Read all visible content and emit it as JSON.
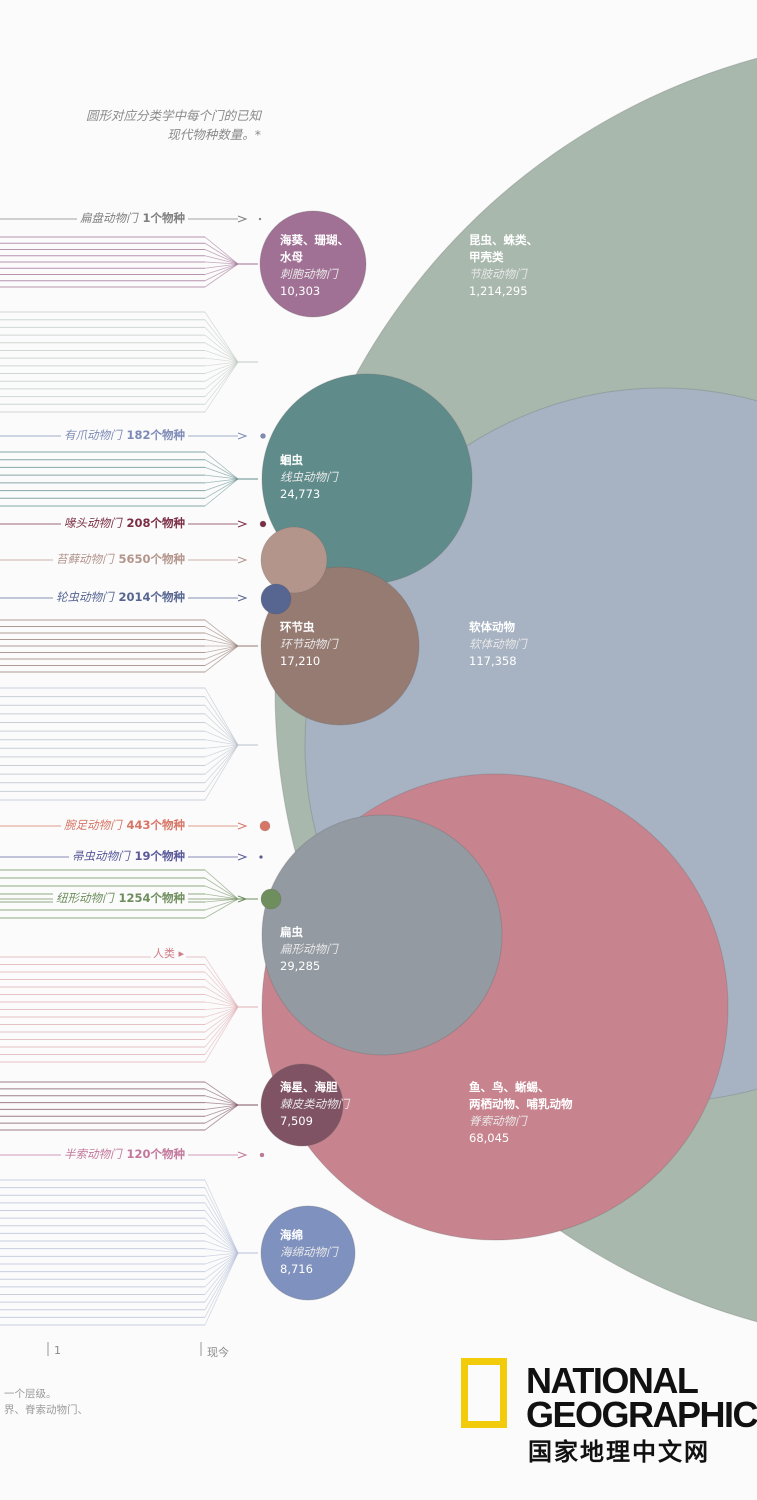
{
  "header_note": [
    "圆形对应分类学中每个门的已知",
    "现代物种数量。*"
  ],
  "colors": {
    "arthropoda": "#a8b8ad",
    "mollusca": "#a7b3c3",
    "chordata": "#c7848f",
    "cnidaria": "#a17195",
    "nematoda": "#5f8c8b",
    "bryozoa": "#b3958c",
    "annelida": "#967b73",
    "rotifera": "#566691",
    "platyhelminthes": "#939aa2",
    "echinodermata": "#7f5363",
    "porifera": "#7f91bf",
    "onychophora": "#7d8bb6",
    "acanthocephala": "#7b2e46",
    "brachiopoda": "#d77666",
    "nemertea_small": "#58589a",
    "nemertea": "#6f8e5e",
    "hemichordata": "#c2789c",
    "placozoa": "#7e7e7e"
  },
  "chart_data": {
    "type": "bubble",
    "unit": "个物种",
    "bubbles": [
      {
        "key": "arthropoda",
        "common": "昆虫、蛛类、甲壳类",
        "common_lines": [
          "昆虫、蛛类、",
          "甲壳类"
        ],
        "sci": "节肢动物门",
        "count": "1,214,295",
        "value": 1214295
      },
      {
        "key": "mollusca",
        "common": "软体动物",
        "common_lines": [
          "软体动物"
        ],
        "sci": "软体动物门",
        "count": "117,358",
        "value": 117358
      },
      {
        "key": "chordata",
        "common": "鱼、鸟、蜥蜴、两栖动物、哺乳动物",
        "common_lines": [
          "鱼、鸟、蜥蜴、",
          "两栖动物、哺乳动物"
        ],
        "sci": "脊索动物门",
        "count": "68,045",
        "value": 68045
      },
      {
        "key": "platyhelminthes",
        "common": "扁虫",
        "common_lines": [
          "扁虫"
        ],
        "sci": "扁形动物门",
        "count": "29,285",
        "value": 29285
      },
      {
        "key": "nematoda",
        "common": "蛔虫",
        "common_lines": [
          "蛔虫"
        ],
        "sci": "线虫动物门",
        "count": "24,773",
        "value": 24773
      },
      {
        "key": "annelida",
        "common": "环节虫",
        "common_lines": [
          "环节虫"
        ],
        "sci": "环节动物门",
        "count": "17,210",
        "value": 17210
      },
      {
        "key": "cnidaria",
        "common": "海葵、珊瑚、水母",
        "common_lines": [
          "海葵、珊瑚、",
          "水母"
        ],
        "sci": "刺胞动物门",
        "count": "10,303",
        "value": 10303
      },
      {
        "key": "porifera",
        "common": "海绵",
        "common_lines": [
          "海绵"
        ],
        "sci": "海绵动物门",
        "count": "8,716",
        "value": 8716
      },
      {
        "key": "echinodermata",
        "common": "海星、海胆",
        "common_lines": [
          "海星、海胆"
        ],
        "sci": "棘皮类动物门",
        "count": "7,509",
        "value": 7509
      }
    ],
    "small_phyla": [
      {
        "key": "placozoa",
        "name": "扁盘动物门",
        "count": "1个物种",
        "value": 1
      },
      {
        "key": "onychophora",
        "name": "有爪动物门",
        "count": "182个物种",
        "value": 182
      },
      {
        "key": "acanthocephala",
        "name": "喙头动物门",
        "count": "208个物种",
        "value": 208
      },
      {
        "key": "bryozoa",
        "name": "苔藓动物门",
        "count": "5650个物种",
        "value": 5650
      },
      {
        "key": "rotifera",
        "name": "轮虫动物门",
        "count": "2014个物种",
        "value": 2014
      },
      {
        "key": "brachiopoda",
        "name": "腕足动物门",
        "count": "443个物种",
        "value": 443
      },
      {
        "key": "nemertea_small",
        "name": "帚虫动物门",
        "count": "19个物种",
        "value": 19
      },
      {
        "key": "nemertea",
        "name": "纽形动物门",
        "count": "1254个物种",
        "value": 1254
      },
      {
        "key": "hemichordata",
        "name": "半索动物门",
        "count": "120个物种",
        "value": 120
      }
    ],
    "human_label": "人类",
    "axis_ticks": [
      "1",
      "现今"
    ]
  },
  "footnote": [
    "一个层级。",
    "界、脊索动物门、"
  ],
  "logo": {
    "line1": "NATIONAL",
    "line2": "GEOGRAPHIC",
    "cn": "国家地理中文网"
  }
}
